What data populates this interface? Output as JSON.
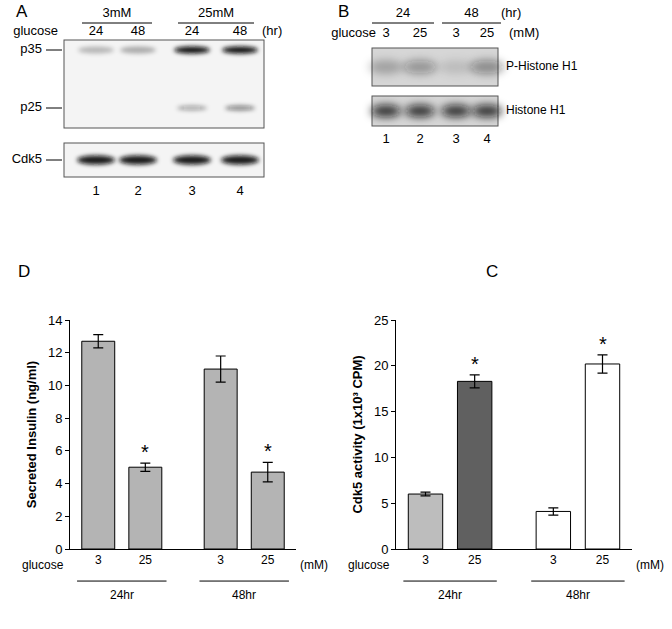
{
  "chart_data": [
    {
      "type": "bar",
      "panel": "D",
      "y_label": "Secreted Insulin (ng/ml)",
      "x_label": "glucose",
      "x_unit": "(mM)",
      "categories": [
        "3",
        "25",
        "3",
        "25"
      ],
      "groups": [
        {
          "label": "24hr",
          "size": 2
        },
        {
          "label": "48hr",
          "size": 2
        }
      ],
      "values": [
        12.7,
        5.0,
        11.0,
        4.7
      ],
      "errors": [
        0.4,
        0.25,
        0.8,
        0.6
      ],
      "colors": [
        "#b4b4b4",
        "#b4b4b4",
        "#b4b4b4",
        "#b4b4b4"
      ],
      "ylim": [
        0,
        14
      ],
      "yticks": [
        0,
        2,
        4,
        6,
        8,
        10,
        12,
        14
      ],
      "grid": false,
      "annotations": [
        {
          "text": "*",
          "category": 1
        },
        {
          "text": "*",
          "category": 3
        }
      ]
    },
    {
      "type": "bar",
      "panel": "C",
      "y_label": "Cdk5 activity (1x10³ CPM)",
      "x_label": "glucose",
      "x_unit": "(mM)",
      "categories": [
        "3",
        "25",
        "3",
        "25"
      ],
      "groups": [
        {
          "label": "24hr",
          "size": 2
        },
        {
          "label": "48hr",
          "size": 2
        }
      ],
      "values": [
        6.0,
        18.3,
        4.1,
        20.2
      ],
      "errors": [
        0.2,
        0.7,
        0.4,
        1.0
      ],
      "colors": [
        "#bdbdbd",
        "#606060",
        "#ffffff",
        "#ffffff"
      ],
      "ylim": [
        0,
        25
      ],
      "yticks": [
        0,
        5,
        10,
        15,
        20,
        25
      ],
      "grid": false,
      "annotations": [
        {
          "text": "*",
          "category": 1
        },
        {
          "text": "*",
          "category": 3
        }
      ]
    }
  ],
  "blots": [
    {
      "panel": "A",
      "groups": [
        {
          "label": "3mM",
          "lanes": [
            "24",
            "48"
          ]
        },
        {
          "label": "25mM",
          "lanes": [
            "24",
            "48"
          ]
        }
      ],
      "lane_label": "glucose",
      "lane_unit": "(hr)",
      "bands": [
        "p35",
        "p25",
        "Cdk5"
      ],
      "lane_numbers": [
        "1",
        "2",
        "3",
        "4"
      ]
    },
    {
      "panel": "B",
      "groups": [
        {
          "label": "24",
          "lanes": [
            "3",
            "25"
          ]
        },
        {
          "label": "48",
          "lanes": [
            "3",
            "25"
          ]
        }
      ],
      "group_unit": "(hr)",
      "lane_label": "glucose",
      "lane_unit": "(mM)",
      "bands": [
        "P-Histone H1",
        "Histone H1"
      ],
      "lane_numbers": [
        "1",
        "2",
        "3",
        "4"
      ]
    }
  ]
}
